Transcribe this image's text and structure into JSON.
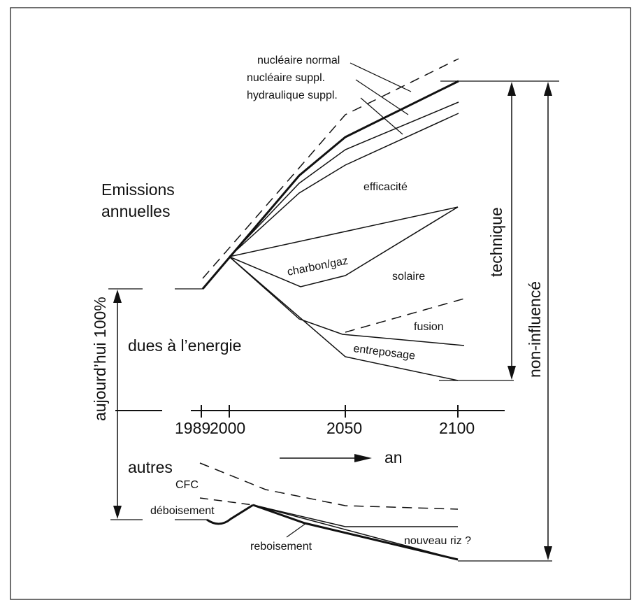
{
  "labels": {
    "emissions_line1": "Emissions",
    "emissions_line2": "annuelles",
    "dues_energie": "dues à l’energie",
    "autres": "autres",
    "aujourdhui": "aujourd’hui 100%",
    "technique": "technique",
    "non_influence": "non-influencé",
    "an": "an",
    "nucleaire_normal": "nucléaire normal",
    "nucleaire_suppl": "nucléaire suppl.",
    "hydraulique_suppl": "hydraulique suppl.",
    "efficacite": "efficacité",
    "charbon_gaz": "charbon/gaz",
    "solaire": "solaire",
    "fusion": "fusion",
    "entreposage": "entreposage",
    "cfc": "CFC",
    "deboisement": "déboisement",
    "reboisement": "reboisement",
    "nouveau_riz": "nouveau riz ?"
  },
  "axis": {
    "ticks": [
      "1989",
      "2000",
      "2050",
      "2100"
    ]
  }
}
